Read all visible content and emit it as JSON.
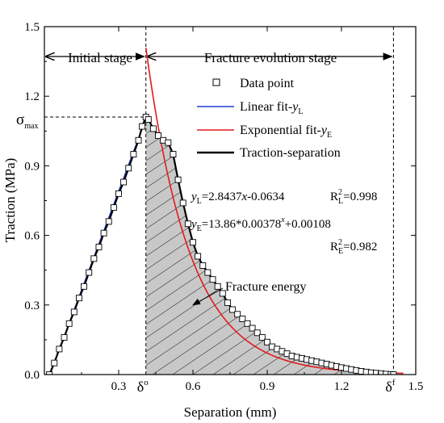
{
  "chart_data": {
    "type": "line",
    "xlabel": "Separation (mm)",
    "ylabel": "Traction (MPa)",
    "xlim": [
      0,
      1.5
    ],
    "ylim": [
      0,
      1.5
    ],
    "x_ticks": [
      "0.3",
      "0.6",
      "0.9",
      "1.2",
      "1.5"
    ],
    "y_ticks": [
      "0.0",
      "0.3",
      "0.6",
      "0.9",
      "1.2",
      "1.5"
    ],
    "x_special_ticks": [
      {
        "label": "δ",
        "sup": "o",
        "value": 0.41
      },
      {
        "label": "δ",
        "sup": "f",
        "value": 1.41
      }
    ],
    "sigma_max": {
      "symbol": "σ",
      "sub": "max",
      "value": 1.11
    },
    "stages": [
      {
        "label": "Initial stage",
        "from": 0,
        "to": 0.41
      },
      {
        "label": "Fracture evolution stage",
        "from": 0.41,
        "to": 1.41
      }
    ],
    "legend": {
      "placement": "top-right",
      "entries": [
        {
          "key": "data",
          "label": "Data point"
        },
        {
          "key": "linear",
          "label": "Linear fit-",
          "var": "y",
          "sub": "L"
        },
        {
          "key": "exponential",
          "label": "Exponential fit-",
          "var": "y",
          "sub": "E"
        },
        {
          "key": "ts",
          "label": "Traction-separation"
        }
      ]
    },
    "equations": {
      "linear": {
        "lhs": "y",
        "lhs_sub": "L",
        "rhs": "=2.8437",
        "var": "x",
        "tail": "-0.0634"
      },
      "linear_r2": {
        "base": "R",
        "sup": "2",
        "sub": "L",
        "value": "=0.998"
      },
      "exponential": {
        "lhs": "y",
        "lhs_sub": "E",
        "rhs": "=13.86*0.00378",
        "sup": "x",
        "tail": "+0.00108"
      },
      "exponential_r2": {
        "base": "R",
        "sup": "2",
        "sub": "E",
        "value": "=0.982"
      }
    },
    "annotation": {
      "label": "Fracture energy",
      "arrow_to": [
        0.6,
        0.3
      ]
    },
    "colors": {
      "linear": "#1f3fd6",
      "exponential": "#e31a1c",
      "ts": "#000000",
      "hatch_fill": "#c8c8c8"
    },
    "linear_fit": {
      "slope": 2.8437,
      "intercept": -0.0634,
      "x_range": [
        0.02,
        0.41
      ]
    },
    "exponential_fit": {
      "a": 13.86,
      "b": 0.00378,
      "c": 0.00108,
      "x_range": [
        0.41,
        1.45
      ]
    },
    "series": [
      {
        "name": "Traction-separation",
        "points": [
          [
            0.02,
            0.0
          ],
          [
            0.04,
            0.05
          ],
          [
            0.06,
            0.11
          ],
          [
            0.08,
            0.16
          ],
          [
            0.1,
            0.22
          ],
          [
            0.12,
            0.27
          ],
          [
            0.14,
            0.33
          ],
          [
            0.16,
            0.38
          ],
          [
            0.18,
            0.44
          ],
          [
            0.2,
            0.5
          ],
          [
            0.22,
            0.55
          ],
          [
            0.24,
            0.61
          ],
          [
            0.26,
            0.66
          ],
          [
            0.28,
            0.72
          ],
          [
            0.3,
            0.78
          ],
          [
            0.32,
            0.83
          ],
          [
            0.34,
            0.89
          ],
          [
            0.36,
            0.95
          ],
          [
            0.38,
            1.01
          ],
          [
            0.395,
            1.07
          ],
          [
            0.41,
            1.11
          ],
          [
            0.42,
            1.1
          ],
          [
            0.44,
            1.06
          ],
          [
            0.46,
            1.03
          ],
          [
            0.48,
            1.01
          ],
          [
            0.5,
            1.0
          ],
          [
            0.52,
            0.95
          ],
          [
            0.54,
            0.84
          ],
          [
            0.56,
            0.74
          ],
          [
            0.58,
            0.65
          ],
          [
            0.6,
            0.57
          ],
          [
            0.62,
            0.51
          ],
          [
            0.64,
            0.47
          ],
          [
            0.66,
            0.44
          ],
          [
            0.68,
            0.41
          ],
          [
            0.7,
            0.38
          ],
          [
            0.72,
            0.35
          ],
          [
            0.74,
            0.31
          ],
          [
            0.76,
            0.28
          ],
          [
            0.78,
            0.26
          ],
          [
            0.8,
            0.24
          ],
          [
            0.82,
            0.22
          ],
          [
            0.84,
            0.2
          ],
          [
            0.86,
            0.18
          ],
          [
            0.88,
            0.16
          ],
          [
            0.9,
            0.14
          ],
          [
            0.92,
            0.12
          ],
          [
            0.94,
            0.11
          ],
          [
            0.96,
            0.1
          ],
          [
            0.98,
            0.09
          ],
          [
            1.0,
            0.08
          ],
          [
            1.02,
            0.075
          ],
          [
            1.04,
            0.07
          ],
          [
            1.06,
            0.065
          ],
          [
            1.08,
            0.06
          ],
          [
            1.1,
            0.055
          ],
          [
            1.12,
            0.05
          ],
          [
            1.14,
            0.045
          ],
          [
            1.16,
            0.04
          ],
          [
            1.18,
            0.035
          ],
          [
            1.2,
            0.03
          ],
          [
            1.22,
            0.026
          ],
          [
            1.24,
            0.022
          ],
          [
            1.26,
            0.018
          ],
          [
            1.28,
            0.014
          ],
          [
            1.3,
            0.011
          ],
          [
            1.32,
            0.008
          ],
          [
            1.34,
            0.006
          ],
          [
            1.36,
            0.004
          ],
          [
            1.38,
            0.002
          ],
          [
            1.4,
            0.001
          ],
          [
            1.41,
            0.0
          ]
        ]
      }
    ]
  }
}
